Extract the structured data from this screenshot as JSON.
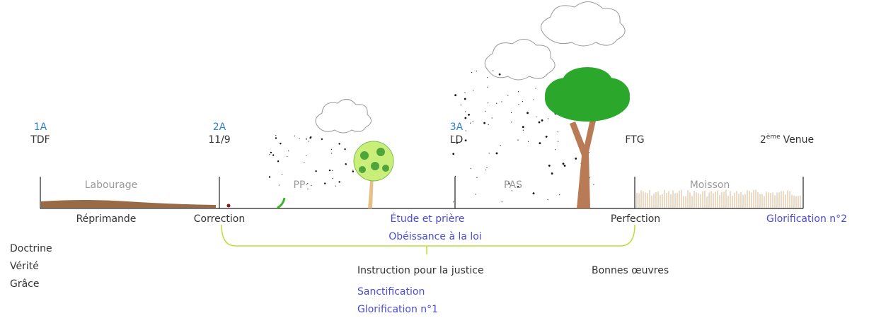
{
  "markers": [
    {
      "code": "1A",
      "label": "TDF"
    },
    {
      "code": "2A",
      "label": "11/9"
    },
    {
      "code": "3A",
      "label": "LD"
    },
    {
      "label": "FTG"
    },
    {
      "number": "2",
      "superscript": "ème",
      "rest": "Venue"
    }
  ],
  "sections": [
    "Labourage",
    "PP",
    "PAS",
    "Moisson"
  ],
  "line_labels": {
    "reprimande": "Réprimande",
    "correction": "Correction",
    "etude": "Étude et prière",
    "obeissance": "Obéissance à la loi",
    "perfection": "Perfection",
    "glorification2": "Glorification n°2"
  },
  "left_list": [
    "Doctrine",
    "Vérité",
    "Grâce"
  ],
  "bottom": {
    "instruction": "Instruction pour la justice",
    "bonnes_oeuvres": "Bonnes œuvres",
    "sanctification": "Sanctification",
    "glorification1": "Glorification n°1"
  }
}
